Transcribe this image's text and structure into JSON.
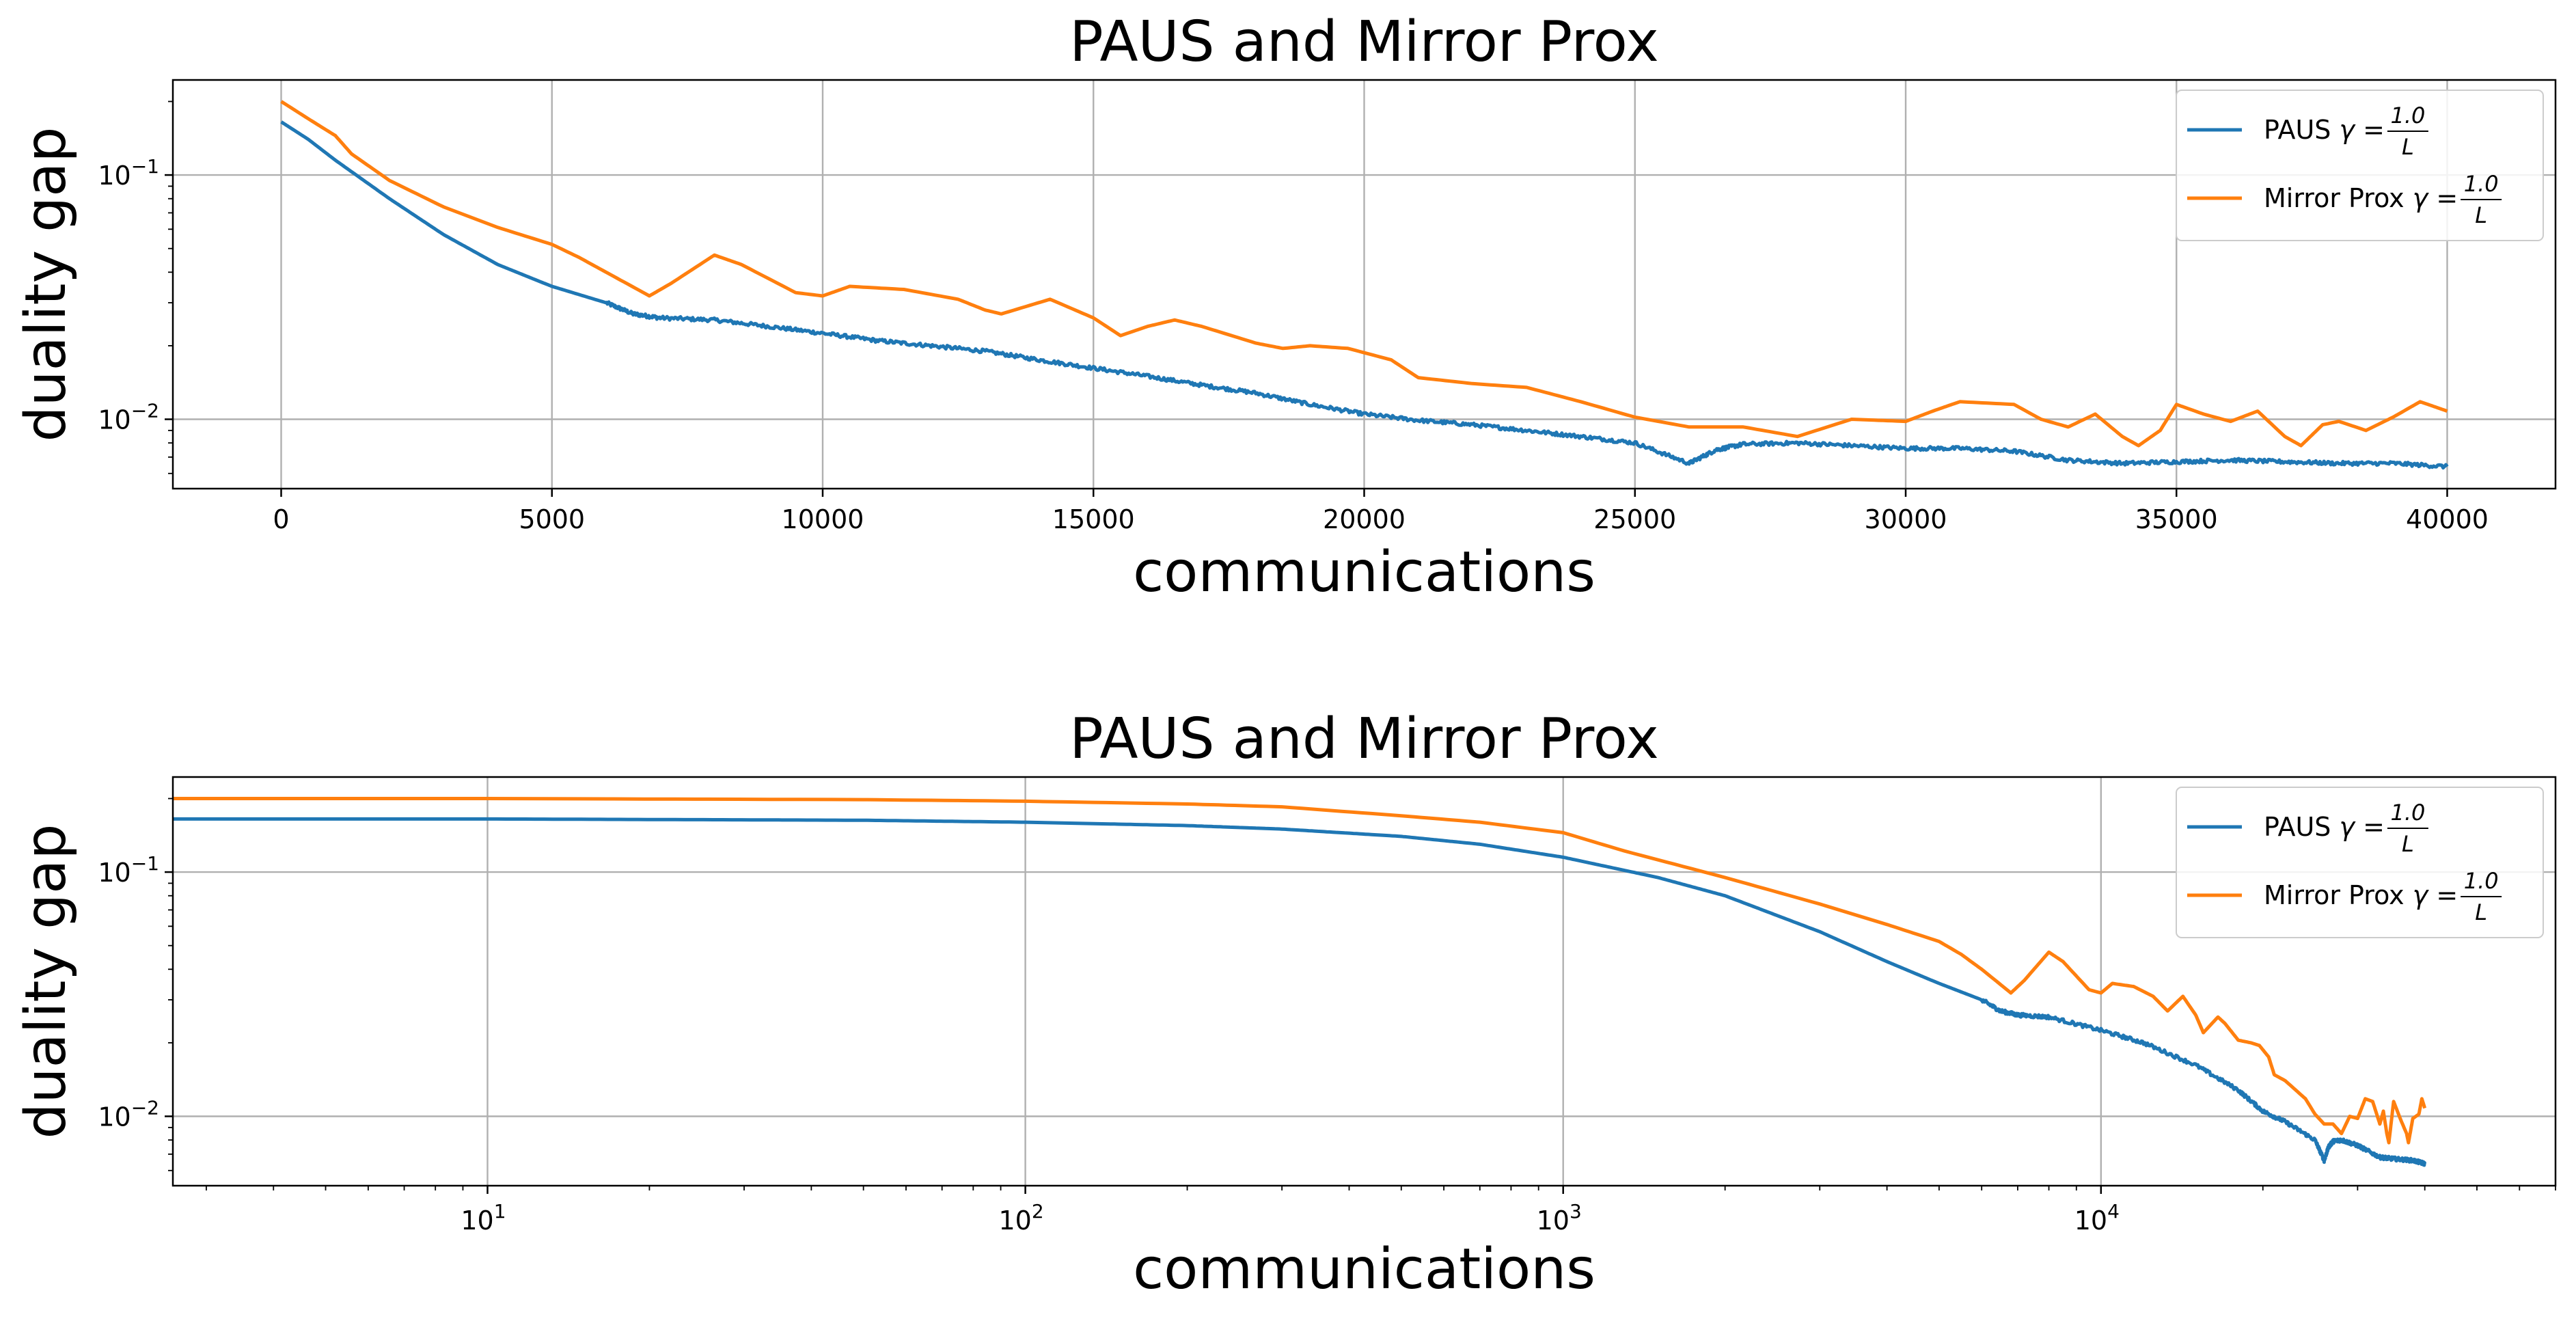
{
  "chart_data": [
    {
      "type": "line",
      "title": "PAUS and Mirror Prox",
      "xlabel": "communications",
      "ylabel": "duality gap",
      "xscale": "linear",
      "yscale": "log",
      "xlim": [
        -2000,
        42000
      ],
      "ylim": [
        0.0052,
        0.245
      ],
      "xticks": [
        0,
        5000,
        10000,
        15000,
        20000,
        25000,
        30000,
        35000,
        40000
      ],
      "xtick_labels": [
        "0",
        "5000",
        "10000",
        "15000",
        "20000",
        "25000",
        "30000",
        "35000",
        "40000"
      ],
      "ytick_labels": [
        {
          "base": "10",
          "exp": "−1"
        },
        {
          "base": "10",
          "exp": "−2"
        }
      ],
      "grid": true,
      "legend": {
        "position": "top-right",
        "entries": [
          {
            "prefix": "PAUS ",
            "gamma": "γ",
            "eq": " = ",
            "num": "1.0",
            "den": "L",
            "color": "#1f77b4"
          },
          {
            "prefix": "Mirror Prox ",
            "gamma": "γ",
            "eq": " = ",
            "num": "1.0",
            "den": "L",
            "color": "#ff7f0e"
          }
        ]
      },
      "series": [
        {
          "color": "#1f77b4",
          "noise": 0.035,
          "x": [
            1,
            500,
            1000,
            2000,
            3000,
            4000,
            5000,
            6000,
            6500,
            7000,
            8000,
            9000,
            10000,
            11000,
            12000,
            13000,
            14000,
            15000,
            16000,
            17000,
            18000,
            19000,
            20000,
            21000,
            22000,
            23000,
            24000,
            25000,
            26000,
            26500,
            27000,
            28000,
            29000,
            30000,
            31000,
            32000,
            33000,
            34000,
            35000,
            36000,
            37000,
            38000,
            39000,
            40000
          ],
          "y": [
            0.165,
            0.14,
            0.115,
            0.08,
            0.057,
            0.043,
            0.035,
            0.03,
            0.027,
            0.026,
            0.0255,
            0.024,
            0.0225,
            0.021,
            0.02,
            0.019,
            0.0175,
            0.0162,
            0.015,
            0.0138,
            0.0128,
            0.0115,
            0.0105,
            0.0099,
            0.0095,
            0.009,
            0.0085,
            0.008,
            0.0066,
            0.0075,
            0.0079,
            0.008,
            0.0078,
            0.0076,
            0.0076,
            0.0074,
            0.0068,
            0.0066,
            0.0067,
            0.0068,
            0.0067,
            0.0066,
            0.0066,
            0.0064
          ]
        },
        {
          "color": "#ff7f0e",
          "noise": 0,
          "x": [
            1,
            500,
            1000,
            1300,
            2000,
            3000,
            4000,
            5000,
            5500,
            6000,
            6800,
            7200,
            8000,
            8500,
            9500,
            10000,
            10500,
            11500,
            12500,
            13000,
            13300,
            14200,
            15000,
            15500,
            16000,
            16500,
            17000,
            18000,
            18500,
            19000,
            19700,
            20500,
            21000,
            22000,
            23000,
            24000,
            25000,
            26000,
            27000,
            28000,
            29000,
            30000,
            30500,
            31000,
            32000,
            32500,
            33000,
            33500,
            34000,
            34300,
            34700,
            35000,
            35500,
            36000,
            36500,
            37000,
            37300,
            37700,
            38000,
            38500,
            39000,
            39500,
            40000
          ],
          "y": [
            0.2,
            0.17,
            0.145,
            0.122,
            0.095,
            0.074,
            0.061,
            0.052,
            0.046,
            0.04,
            0.032,
            0.036,
            0.047,
            0.043,
            0.033,
            0.032,
            0.035,
            0.034,
            0.031,
            0.028,
            0.027,
            0.031,
            0.026,
            0.022,
            0.024,
            0.0255,
            0.024,
            0.0205,
            0.0195,
            0.02,
            0.0195,
            0.0175,
            0.0148,
            0.014,
            0.0135,
            0.0118,
            0.0102,
            0.0093,
            0.0093,
            0.0085,
            0.01,
            0.0098,
            0.0108,
            0.0118,
            0.0115,
            0.01,
            0.0093,
            0.0105,
            0.0085,
            0.0078,
            0.009,
            0.0115,
            0.0105,
            0.0098,
            0.0108,
            0.0085,
            0.0078,
            0.0095,
            0.0098,
            0.009,
            0.0102,
            0.0118,
            0.0108
          ]
        }
      ]
    },
    {
      "type": "line",
      "title": "PAUS and Mirror Prox",
      "xlabel": "communications",
      "ylabel": "duality gap",
      "xscale": "log",
      "yscale": "log",
      "xlim": [
        2.6,
        70000
      ],
      "ylim": [
        0.0052,
        0.245
      ],
      "xticks": [
        10,
        100,
        1000,
        10000
      ],
      "xtick_labels": [
        {
          "base": "10",
          "exp": "1"
        },
        {
          "base": "10",
          "exp": "2"
        },
        {
          "base": "10",
          "exp": "3"
        },
        {
          "base": "10",
          "exp": "4"
        }
      ],
      "ytick_labels": [
        {
          "base": "10",
          "exp": "−1"
        },
        {
          "base": "10",
          "exp": "−2"
        }
      ],
      "grid": true,
      "legend": {
        "position": "top-right",
        "entries": [
          {
            "prefix": "PAUS ",
            "gamma": "γ",
            "eq": " = ",
            "num": "1.0",
            "den": "L",
            "color": "#1f77b4"
          },
          {
            "prefix": "Mirror Prox ",
            "gamma": "γ",
            "eq": " = ",
            "num": "1.0",
            "den": "L",
            "color": "#ff7f0e"
          }
        ]
      },
      "series": [
        {
          "color": "#1f77b4",
          "noise": 0.035,
          "x": [
            2.6,
            10,
            50,
            100,
            200,
            300,
            500,
            700,
            1000,
            1500,
            2000,
            3000,
            4000,
            5000,
            6000,
            6500,
            7000,
            8000,
            10000,
            12000,
            15000,
            18000,
            20000,
            22000,
            25000,
            26000,
            26500,
            27000,
            28000,
            30000,
            33000,
            35000,
            38000,
            40000
          ],
          "y": [
            0.165,
            0.165,
            0.163,
            0.16,
            0.155,
            0.15,
            0.14,
            0.13,
            0.115,
            0.095,
            0.08,
            0.057,
            0.043,
            0.035,
            0.03,
            0.027,
            0.026,
            0.0255,
            0.0225,
            0.02,
            0.0162,
            0.0128,
            0.0105,
            0.0095,
            0.008,
            0.0066,
            0.0075,
            0.0079,
            0.008,
            0.0076,
            0.0068,
            0.0067,
            0.0066,
            0.0064
          ]
        },
        {
          "color": "#ff7f0e",
          "noise": 0,
          "x": [
            2.6,
            10,
            50,
            100,
            200,
            300,
            500,
            700,
            1000,
            1300,
            2000,
            3000,
            4000,
            5000,
            5500,
            6000,
            6800,
            7200,
            8000,
            8500,
            9500,
            10000,
            10500,
            11500,
            12500,
            13300,
            14200,
            15000,
            15500,
            16500,
            17000,
            18000,
            19000,
            19700,
            20500,
            21000,
            22000,
            24000,
            25000,
            26000,
            27000,
            28000,
            29000,
            30000,
            31000,
            32000,
            33000,
            33500,
            34000,
            34300,
            35000,
            36000,
            37000,
            37300,
            38000,
            39000,
            39500,
            40000
          ],
          "y": [
            0.2,
            0.2,
            0.198,
            0.195,
            0.19,
            0.185,
            0.17,
            0.16,
            0.145,
            0.122,
            0.095,
            0.074,
            0.061,
            0.052,
            0.046,
            0.04,
            0.032,
            0.036,
            0.047,
            0.043,
            0.033,
            0.032,
            0.035,
            0.034,
            0.031,
            0.027,
            0.031,
            0.026,
            0.022,
            0.0255,
            0.024,
            0.0205,
            0.02,
            0.0195,
            0.0175,
            0.0148,
            0.014,
            0.0118,
            0.0102,
            0.0093,
            0.0093,
            0.0085,
            0.01,
            0.0098,
            0.0118,
            0.0115,
            0.0093,
            0.0105,
            0.0085,
            0.0078,
            0.0115,
            0.0098,
            0.0085,
            0.0078,
            0.0098,
            0.0102,
            0.0118,
            0.0108
          ]
        }
      ]
    }
  ]
}
